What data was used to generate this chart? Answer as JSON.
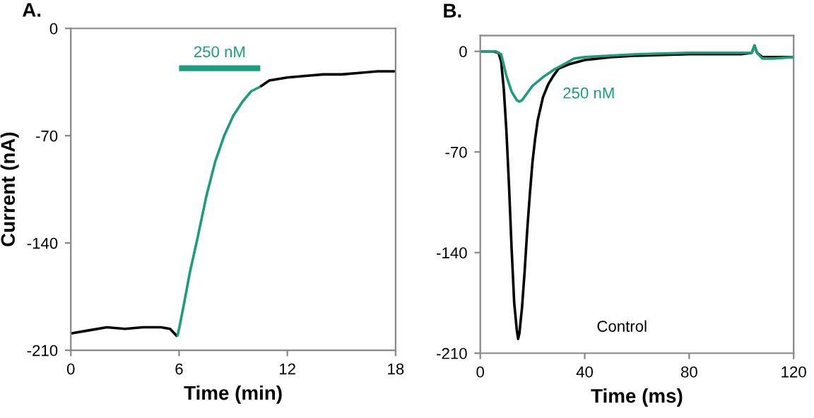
{
  "chart_data": [
    {
      "type": "line",
      "title": "A.",
      "xlabel": "Time (min)",
      "ylabel": "Current (nA)",
      "xlim": [
        0,
        18
      ],
      "xticks": [
        0,
        6,
        12,
        18
      ],
      "ylim": [
        -210,
        0
      ],
      "yticks": [
        0,
        -70,
        -140,
        -210
      ],
      "grid": false,
      "legend": false,
      "marker": "none",
      "line_style": "solid",
      "annotations": [
        "250 nM"
      ],
      "series": [
        {
          "color": "#000000",
          "x": [
            0,
            1,
            2,
            3,
            4,
            5,
            5.5,
            5.9
          ],
          "values": [
            -199,
            -197,
            -195,
            -196,
            -195,
            -195,
            -196,
            -201
          ]
        },
        {
          "color": "#1a9e7e",
          "x": [
            5.9,
            6.0,
            6.3,
            6.6,
            7,
            7.5,
            8,
            8.5,
            9,
            9.5,
            10,
            10.5
          ],
          "values": [
            -201,
            -196,
            -178,
            -159,
            -138,
            -110,
            -87,
            -70,
            -57,
            -48,
            -41,
            -38
          ]
        },
        {
          "color": "#000000",
          "x": [
            10.5,
            11,
            12,
            13,
            14,
            15,
            16,
            17,
            18
          ],
          "values": [
            -38,
            -34,
            -32,
            -31,
            -30,
            -30,
            -29,
            -28,
            -28
          ]
        },
        {
          "color": "#1a9e7e",
          "x": [
            6.0,
            10.5
          ],
          "values": [
            -26,
            -26
          ]
        }
      ]
    },
    {
      "type": "line",
      "title": "B.",
      "xlabel": "Time (ms)",
      "xlim": [
        0,
        120
      ],
      "xticks": [
        0,
        40,
        80,
        120
      ],
      "ylim": [
        -210,
        11
      ],
      "yticks": [
        0,
        -70,
        -140,
        -210
      ],
      "grid": false,
      "legend": false,
      "marker": "none",
      "line_style": "solid",
      "series": [
        {
          "name": "Control",
          "color": "#000000",
          "x": [
            0,
            5,
            7,
            8,
            9,
            10,
            11,
            12,
            13,
            14,
            14.5,
            15,
            16,
            17,
            18,
            19,
            20,
            21,
            22,
            24,
            26,
            28,
            30,
            34,
            40,
            50,
            60,
            80,
            100,
            104,
            105,
            106,
            108,
            112,
            120
          ],
          "values": [
            0,
            0,
            -1,
            -7,
            -26,
            -55,
            -93,
            -137,
            -175,
            -194,
            -200,
            -196,
            -178,
            -153,
            -124,
            -99,
            -77,
            -61,
            -48,
            -32,
            -23,
            -17,
            -12,
            -9,
            -6,
            -4,
            -3,
            -2,
            -2,
            -1,
            4,
            -1,
            -4,
            -4,
            -4
          ]
        },
        {
          "name": "250 nM",
          "color": "#1a9e7e",
          "x": [
            0,
            6,
            8,
            10,
            12,
            14,
            15,
            16,
            18,
            20,
            24,
            28,
            32,
            36,
            40,
            50,
            60,
            80,
            100,
            104,
            105,
            106,
            108,
            112,
            120
          ],
          "values": [
            0,
            0,
            -2,
            -17,
            -28,
            -34,
            -35,
            -34,
            -29,
            -24,
            -18,
            -13,
            -9,
            -5,
            -4,
            -3,
            -2,
            -1,
            -1,
            -1,
            4,
            -1,
            -5,
            -5,
            -4
          ]
        }
      ]
    }
  ]
}
